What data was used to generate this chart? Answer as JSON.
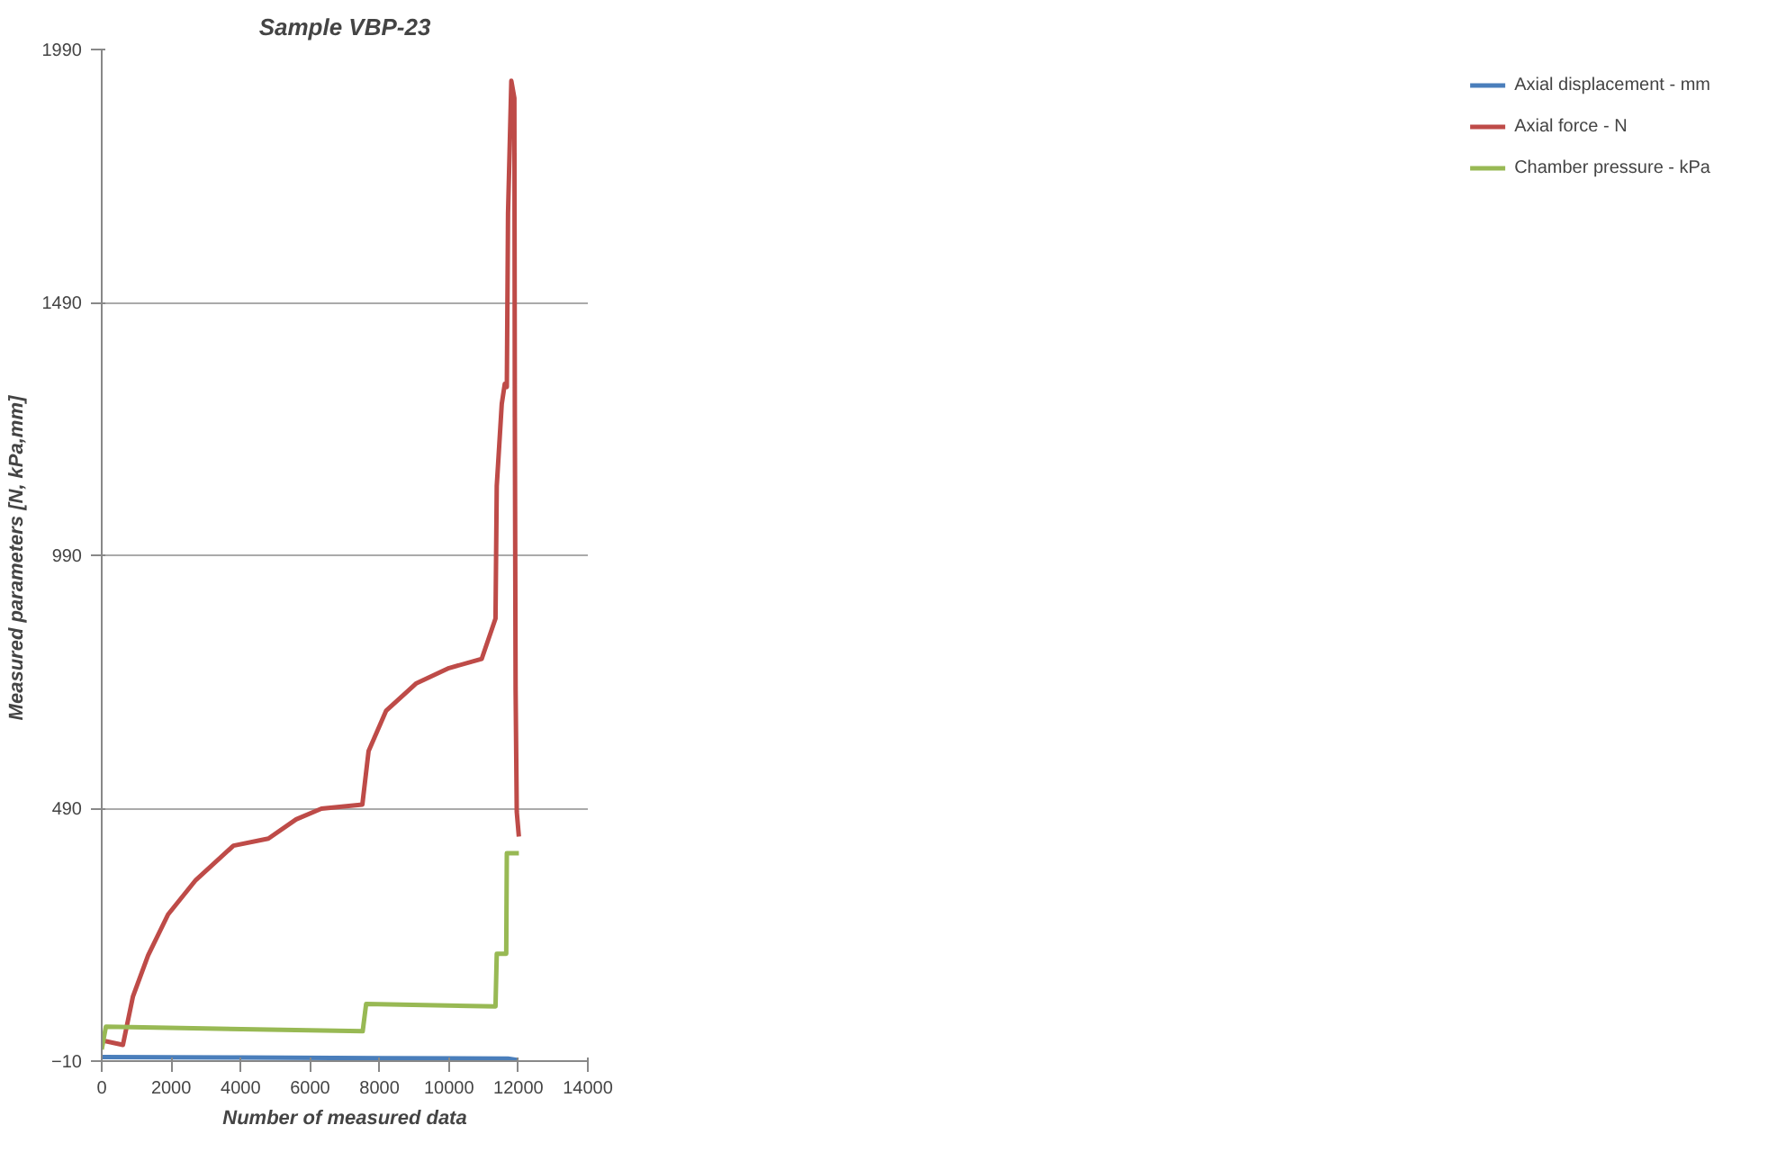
{
  "chart_data": {
    "type": "line",
    "title": "Sample VBP-23",
    "xlabel": "Number of measured data",
    "ylabel": "Measured parameters  [N, kPa,mm]",
    "xlim": [
      0,
      14000
    ],
    "xticks": [
      0,
      2000,
      4000,
      6000,
      8000,
      10000,
      12000,
      14000
    ],
    "ylim": [
      -10,
      1990
    ],
    "yticks": [
      -10,
      490,
      990,
      1490,
      1990
    ],
    "grid": "y",
    "legend": "right",
    "line_style": "solid",
    "series": [
      {
        "name": "Axial displacement - mm",
        "color": "#4a7ebb",
        "x": [
          0,
          4000,
          8000,
          11700,
          12000
        ],
        "values": [
          -2,
          -3,
          -4,
          -5,
          -8
        ]
      },
      {
        "name": "Axial force - N",
        "color": "#be4b48",
        "x": [
          0,
          610,
          900,
          1335,
          1912,
          2710,
          3795,
          4800,
          5600,
          6327,
          7506,
          7686,
          8193,
          9062,
          10002,
          10942,
          11341,
          11377,
          11521,
          11609,
          11667,
          11702,
          11797,
          11884,
          11898,
          11920,
          11953,
          12014
        ],
        "values": [
          31,
          22,
          118,
          199,
          280,
          348,
          416,
          430,
          468,
          489,
          497,
          603,
          683,
          737,
          767,
          785,
          865,
          1127,
          1289,
          1329,
          1323,
          1666,
          1928,
          1894,
          1263,
          724,
          483,
          434
        ]
      },
      {
        "name": "Chamber pressure - kPa",
        "color": "#98b954",
        "x": [
          0,
          120,
          7516,
          7615,
          11341,
          11377,
          11650,
          11667,
          12014
        ],
        "values": [
          13,
          58,
          49,
          103,
          98,
          202,
          202,
          401,
          401
        ]
      }
    ]
  }
}
